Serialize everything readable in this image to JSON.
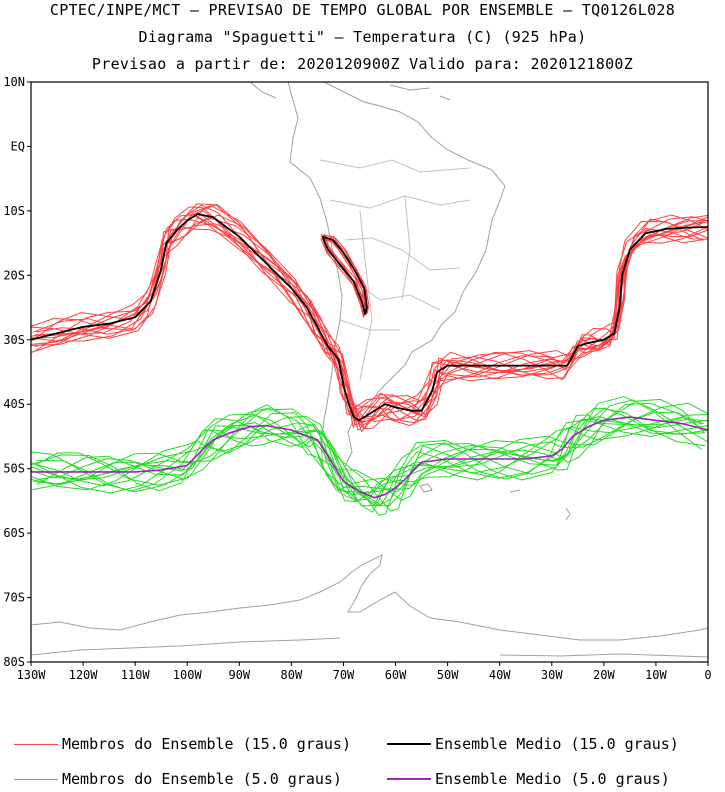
{
  "header": {
    "line1": "CPTEC/INPE/MCT — PREVISAO DE TEMPO GLOBAL POR ENSEMBLE — TQ0126L028",
    "line2": "Diagrama \"Spaguetti\" — Temperatura (C) (925 hPa)",
    "line3": "Previsao a partir de: 2020120900Z  Valido para: 2020121800Z"
  },
  "axes": {
    "lat_labels": [
      "10N",
      "EQ",
      "10S",
      "20S",
      "30S",
      "40S",
      "50S",
      "60S",
      "70S",
      "80S"
    ],
    "lon_labels": [
      "130W",
      "120W",
      "110W",
      "100W",
      "90W",
      "80W",
      "70W",
      "60W",
      "50W",
      "40W",
      "30W",
      "20W",
      "10W",
      "0"
    ]
  },
  "legend": {
    "members_15": "Membros do Ensemble (15.0 graus)",
    "mean_15": "Ensemble Medio (15.0 graus)",
    "members_5": "Membros do Ensemble (5.0 graus)",
    "mean_5": "Ensemble Medio (5.0 graus)"
  },
  "colors": {
    "members_15": "#ff4040",
    "mean_15": "#000000",
    "members_5": "#22dd22",
    "mean_5": "#a020c0",
    "coastline": "#a0a0a0"
  },
  "chart_data": {
    "type": "line",
    "projection": "cylindrical",
    "lon_range": [
      -130,
      0
    ],
    "lat_range": [
      -80,
      10
    ],
    "series": [
      {
        "name": "Ensemble Medio (15.0 graus)",
        "lon": [
          -130,
          -125,
          -120,
          -115,
          -110,
          -107,
          -105,
          -104,
          -102,
          -100,
          -98,
          -95,
          -90,
          -85,
          -80,
          -77,
          -75,
          -73,
          -71,
          -70,
          -69,
          -68,
          -67,
          -65,
          -62,
          -60,
          -57,
          -55,
          -53,
          -52,
          -50,
          -45,
          -40,
          -35,
          -30,
          -27,
          -25,
          -23,
          -20,
          -18,
          -17,
          -16.5,
          -15,
          -12,
          -8,
          -4,
          0
        ],
        "lat": [
          -30,
          -29,
          -28,
          -27.5,
          -26.5,
          -24,
          -19,
          -15,
          -13,
          -11.5,
          -10.5,
          -11,
          -14,
          -18,
          -22,
          -25,
          -28,
          -31,
          -33,
          -37,
          -40,
          -42,
          -42.5,
          -41.5,
          -40,
          -40.5,
          -41,
          -41,
          -38,
          -35,
          -34,
          -34,
          -34,
          -34,
          -34,
          -34,
          -31,
          -30.5,
          -30,
          -29,
          -25,
          -20,
          -16,
          -13.5,
          -12.8,
          -12.6,
          -12.5
        ]
      },
      {
        "name": "Ensemble Medio (15.0 graus)",
        "lon": [
          -74,
          -72,
          -70,
          -68,
          -66,
          -65.5,
          -65.8,
          -66.5,
          -68,
          -71,
          -73,
          -74
        ],
        "lat": [
          -14,
          -14.5,
          -16.5,
          -19,
          -22,
          -25,
          -26,
          -24,
          -21,
          -18,
          -16,
          -14
        ]
      },
      {
        "name": "Ensemble Medio (5.0 graus)",
        "lon": [
          -130,
          -125,
          -120,
          -115,
          -110,
          -105,
          -100,
          -97,
          -95,
          -92,
          -88,
          -85,
          -80,
          -77,
          -75,
          -73,
          -70,
          -67,
          -64,
          -62,
          -60,
          -58,
          -55,
          -50,
          -45,
          -40,
          -35,
          -30,
          -28,
          -26,
          -23,
          -20,
          -15,
          -10,
          -5,
          0
        ],
        "lat": [
          -50.5,
          -50.5,
          -50.5,
          -50.5,
          -50.5,
          -50.2,
          -49.5,
          -47,
          -45.5,
          -44.5,
          -43.5,
          -43.3,
          -44,
          -45,
          -45.5,
          -48,
          -52,
          -53.5,
          -54.5,
          -54,
          -53,
          -51.5,
          -49,
          -48.5,
          -48.5,
          -48.5,
          -48.5,
          -48,
          -47,
          -45,
          -43.5,
          -42.5,
          -42,
          -42.5,
          -43,
          -44
        ]
      }
    ]
  }
}
